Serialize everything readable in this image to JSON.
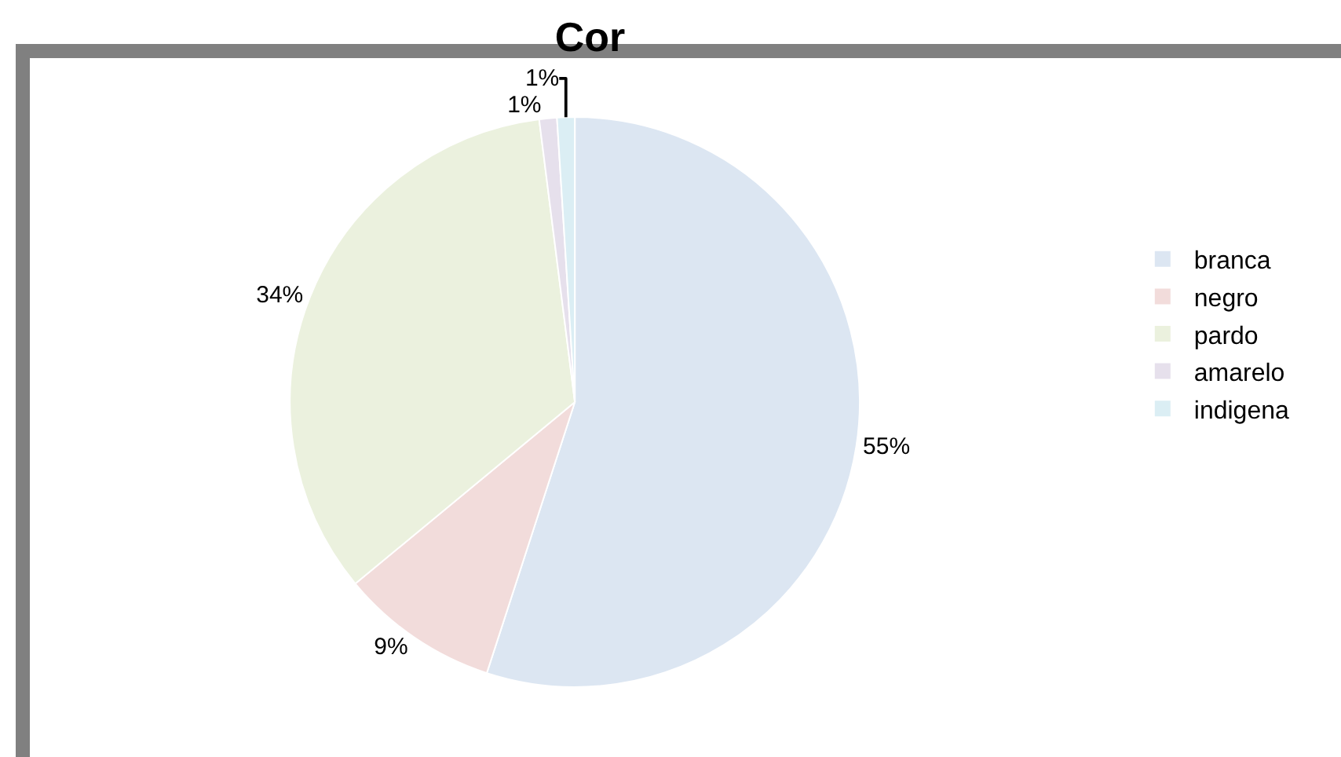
{
  "chart_data": {
    "type": "pie",
    "title": "Cor",
    "categories": [
      "branca",
      "negro",
      "pardo",
      "amarelo",
      "indigena"
    ],
    "values": [
      55,
      9,
      34,
      1,
      1
    ],
    "value_labels": [
      "55%",
      "9%",
      "34%",
      "1%",
      "1%"
    ],
    "colors": [
      "#dce6f2",
      "#f2dcdb",
      "#ebf1de",
      "#e6e0ec",
      "#dbeef4"
    ],
    "legend": "right"
  }
}
